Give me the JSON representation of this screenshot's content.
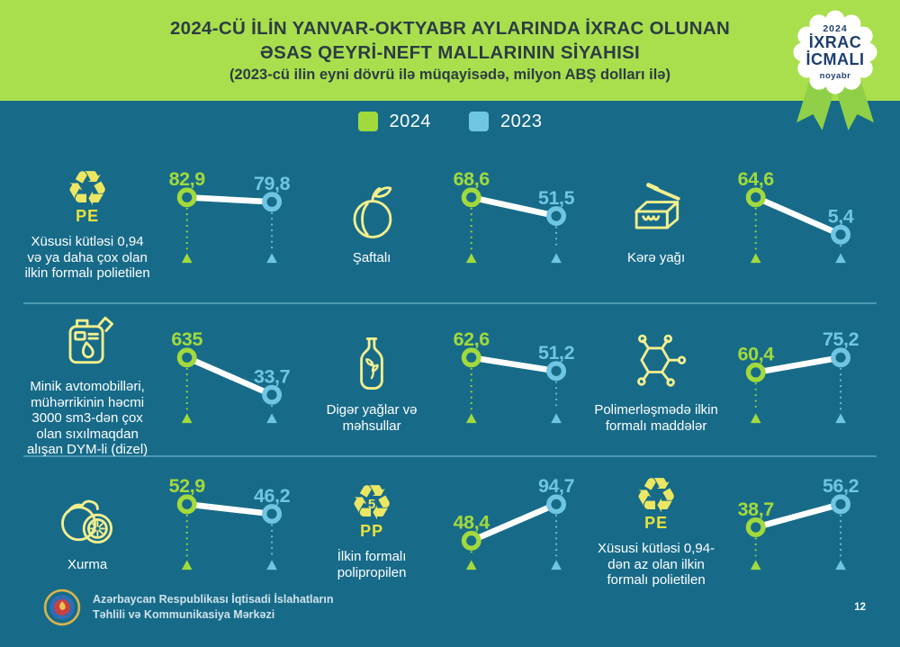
{
  "header": {
    "title_line1": "2024-CÜ İLİN YANVAR-OKTYABR AYLARINDA İXRAC OLUNAN",
    "title_line2": "ƏSAS QEYRİ-NEFT MALLARININ SİYAHISI",
    "subtitle": "(2023-cü ilin eyni dövrü ilə müqayisədə, milyon ABŞ dolları ilə)",
    "badge": {
      "year": "2024",
      "line1": "İXRAC",
      "line2": "İCMALI",
      "month": "noyabr"
    }
  },
  "legend": [
    {
      "label": "2024",
      "color": "#a2d93c"
    },
    {
      "label": "2023",
      "color": "#6fc6e2"
    }
  ],
  "colors": {
    "background": "#a9df4d",
    "panel": "#176b89",
    "accent_2024": "#a2d93c",
    "accent_2023": "#6fc6e2",
    "icon_yellow": "#f3ef8e",
    "title_text": "#2c3c44",
    "badge_text": "#1e3e6f"
  },
  "icons": {
    "recycle_glyph": "♻"
  },
  "chart_data": {
    "type": "line",
    "series_labels": [
      "2024",
      "2023"
    ],
    "unit": "milyon ABŞ dolları ilə",
    "items": [
      {
        "icon": "recycle-pe-icon",
        "icon_label": "PE",
        "label": "Xüsusi kütləsi 0,94 və ya daha çox olan ilkin formalı polietilen",
        "values": {
          "2024": 82.9,
          "2023": 79.8
        },
        "display": {
          "2024": "82,9",
          "2023": "79,8"
        }
      },
      {
        "icon": "peach-icon",
        "label": "Şaftalı",
        "values": {
          "2024": 68.6,
          "2023": 51.5
        },
        "display": {
          "2024": "68,6",
          "2023": "51,5"
        }
      },
      {
        "icon": "butter-icon",
        "label": "Kərə yağı",
        "values": {
          "2024": 64.6,
          "2023": 5.4
        },
        "display": {
          "2024": "64,6",
          "2023": "5,4"
        }
      },
      {
        "icon": "jerrycan-icon",
        "label": "Minik avtomobilləri, mühərrikinin həcmi 3000 sm3-dən çox olan sıxılmaqdan alışan DYM-li (dizel)",
        "values": {
          "2024": 635,
          "2023": 33.7
        },
        "display": {
          "2024": "635",
          "2023": "33,7"
        }
      },
      {
        "icon": "oil-bottle-icon",
        "label": "Digər yağlar və məhsullar",
        "values": {
          "2024": 62.6,
          "2023": 51.2
        },
        "display": {
          "2024": "62,6",
          "2023": "51,2"
        }
      },
      {
        "icon": "molecule-icon",
        "label": "Polimerləşmədə ilkin formalı maddələr",
        "values": {
          "2024": 60.4,
          "2023": 75.2
        },
        "display": {
          "2024": "60,4",
          "2023": "75,2"
        }
      },
      {
        "icon": "persimmon-icon",
        "label": "Xurma",
        "values": {
          "2024": 52.9,
          "2023": 46.2
        },
        "display": {
          "2024": "52,9",
          "2023": "46,2"
        }
      },
      {
        "icon": "recycle-pp-icon",
        "icon_label": "PP",
        "icon_number": "5",
        "label": "İlkin formalı polipropilen",
        "values": {
          "2024": 48.4,
          "2023": 94.7
        },
        "display": {
          "2024": "48,4",
          "2023": "94,7"
        }
      },
      {
        "icon": "recycle-pe-icon",
        "icon_label": "PE",
        "label": "Xüsusi kütləsi 0,94-dən az olan ilkin formalı polietilen",
        "values": {
          "2024": 38.7,
          "2023": 56.2
        },
        "display": {
          "2024": "38,7",
          "2023": "56,2"
        }
      }
    ]
  },
  "footer": {
    "org_line1": "Azərbaycan Respublikası İqtisadi İslahatların",
    "org_line2": "Təhlili və Kommunikasiya Mərkəzi",
    "page": "12"
  }
}
